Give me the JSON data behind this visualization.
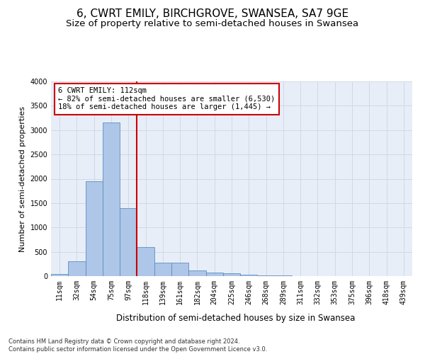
{
  "title": "6, CWRT EMILY, BIRCHGROVE, SWANSEA, SA7 9GE",
  "subtitle": "Size of property relative to semi-detached houses in Swansea",
  "xlabel": "Distribution of semi-detached houses by size in Swansea",
  "ylabel": "Number of semi-detached properties",
  "footnote": "Contains HM Land Registry data © Crown copyright and database right 2024.\nContains public sector information licensed under the Open Government Licence v3.0.",
  "bar_labels": [
    "11sqm",
    "32sqm",
    "54sqm",
    "75sqm",
    "97sqm",
    "118sqm",
    "139sqm",
    "161sqm",
    "182sqm",
    "204sqm",
    "225sqm",
    "246sqm",
    "268sqm",
    "289sqm",
    "311sqm",
    "332sqm",
    "353sqm",
    "375sqm",
    "396sqm",
    "418sqm",
    "439sqm"
  ],
  "bar_values": [
    50,
    300,
    1950,
    3150,
    1400,
    600,
    270,
    270,
    120,
    80,
    60,
    30,
    20,
    8,
    5,
    4,
    3,
    2,
    1,
    1,
    1
  ],
  "bar_color": "#aec6e8",
  "bar_edge_color": "#5a8fc0",
  "vline_color": "#cc0000",
  "annotation_box_text": "6 CWRT EMILY: 112sqm\n← 82% of semi-detached houses are smaller (6,530)\n18% of semi-detached houses are larger (1,445) →",
  "annotation_box_color": "#ffffff",
  "annotation_box_edge_color": "#cc0000",
  "ylim": [
    0,
    4000
  ],
  "yticks": [
    0,
    500,
    1000,
    1500,
    2000,
    2500,
    3000,
    3500,
    4000
  ],
  "grid_color": "#d0d8e8",
  "background_color": "#e8eef8",
  "title_fontsize": 11,
  "subtitle_fontsize": 9.5,
  "axis_label_fontsize": 8,
  "tick_fontsize": 7,
  "annotation_fontsize": 7.5,
  "footnote_fontsize": 6
}
